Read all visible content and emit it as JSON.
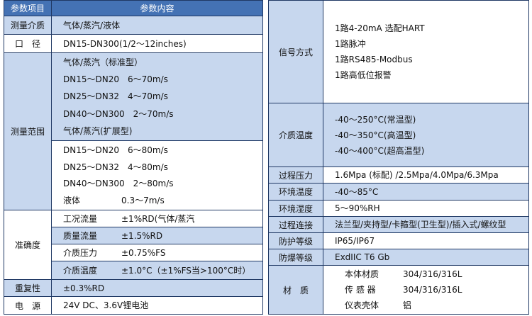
{
  "left": {
    "header": [
      "参数项目",
      "参数内容"
    ],
    "rows": [
      {
        "label": "测量介质",
        "blocks": [
          [
            [
              "气体/蒸汽/液体"
            ]
          ]
        ]
      },
      {
        "label": "口　径",
        "blocks": [
          [
            [
              "DN15-DN300(1/2～12inches)"
            ]
          ]
        ]
      },
      {
        "label": "测量范围",
        "blocks": [
          [
            [
              "气体/蒸汽（标准型）"
            ],
            [
              "DN15～DN20",
              "6～70m/s"
            ],
            [
              "DN25～DN32",
              "4～70m/s"
            ],
            [
              "DN40～DN300",
              "2～70m/s"
            ],
            [
              "气体/蒸汽(扩展型)"
            ]
          ],
          [
            [
              "DN15～DN20",
              "6～80m/s"
            ],
            [
              "DN25～DN32",
              "4～80m/s"
            ],
            [
              "DN40～DN300",
              "2～80m/s"
            ],
            [
              "液体",
              "0.3～7m/s"
            ]
          ]
        ]
      },
      {
        "label": "准确度",
        "blocks": [
          [
            [
              "工况流量",
              "±1%RD(气体/蒸汽"
            ]
          ],
          [
            [
              "质量流量",
              "±1.5%RD"
            ]
          ],
          [
            [
              "介质压力",
              "±0.75%FS"
            ]
          ],
          [
            [
              "介质温度",
              "±1.0°C（±1%FS当>100°C时）"
            ]
          ]
        ]
      },
      {
        "label": "重复性",
        "blocks": [
          [
            [
              "±0.3%RD"
            ]
          ]
        ]
      },
      {
        "label": "电　源",
        "blocks": [
          [
            [
              "24V DC、3.6V锂电池"
            ]
          ]
        ]
      }
    ]
  },
  "right": {
    "rows": [
      {
        "label": "信号方式",
        "lines": [
          [
            "1路4-20mA 选配HART"
          ],
          [
            "1路脉冲"
          ],
          [
            "1路RS485-Modbus"
          ],
          [
            "1路高低位报警"
          ]
        ]
      },
      {
        "label": "介质温度",
        "lines": [
          [
            "-40～250°C(常温型)"
          ],
          [
            "-40～350°C(高温型)"
          ],
          [
            "-40～400°C(超高温型)"
          ]
        ]
      },
      {
        "label": "过程压力",
        "lines": [
          [
            "1.6Mpa (标配) /2.5Mpa/4.0Mpa/6.3Mpa"
          ]
        ]
      },
      {
        "label": "环境温度",
        "lines": [
          [
            "-40～85°C"
          ]
        ]
      },
      {
        "label": "环境湿度",
        "lines": [
          [
            "5～90%RH"
          ]
        ]
      },
      {
        "label": "过程连接",
        "lines": [
          [
            "法兰型/夹持型/卡箍型(卫生型)/插入式/螺纹型"
          ]
        ]
      },
      {
        "label": "防护等级",
        "lines": [
          [
            "IP65/IP67"
          ]
        ]
      },
      {
        "label": "防爆等级",
        "lines": [
          [
            "ExdIIC T6 Gb"
          ]
        ]
      },
      {
        "label": "材　质",
        "lines": [
          [
            "本体材质",
            "304/316/316L"
          ],
          [
            "传 感 器",
            "304/316/316L"
          ],
          [
            "仪表壳体",
            "铝"
          ]
        ]
      }
    ]
  }
}
